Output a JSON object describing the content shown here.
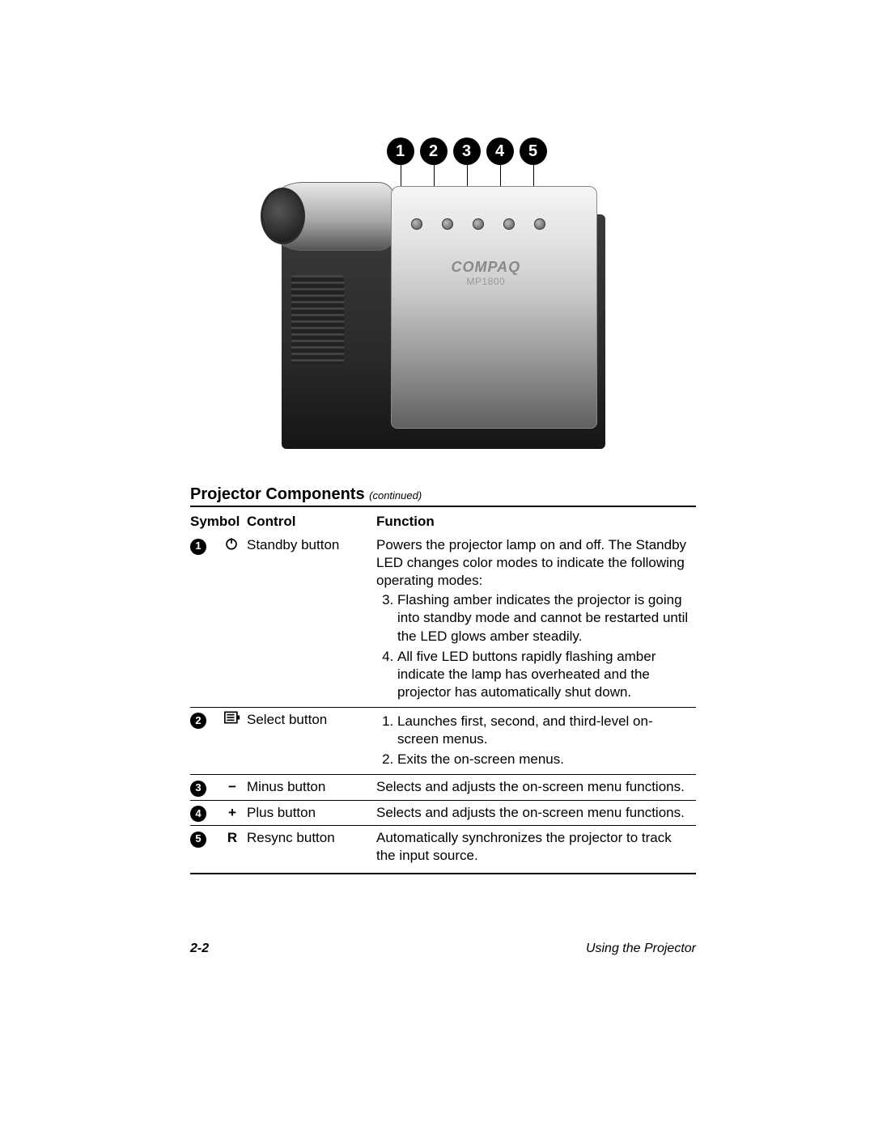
{
  "figure": {
    "callouts": [
      "1",
      "2",
      "3",
      "4",
      "5"
    ],
    "brand": "COMPAQ",
    "model": "MP1800"
  },
  "section": {
    "title": "Projector Components",
    "continued": "(continued)"
  },
  "headers": {
    "symbol": "Symbol",
    "control": "Control",
    "function": "Function"
  },
  "rows": [
    {
      "num": "1",
      "icon_svg": "standby",
      "control": "Standby button",
      "function_intro": "Powers the projector lamp on and off. The Standby LED changes color modes to indicate the following operating modes:",
      "list_start": 3,
      "list": [
        "Flashing amber indicates the projector is going into standby mode and cannot be restarted until the LED glows amber steadily.",
        "All five LED buttons rapidly flashing amber indicate the lamp has overheated and the projector has automatically shut down."
      ]
    },
    {
      "num": "2",
      "icon_svg": "select",
      "control": "Select button",
      "list_start": 1,
      "list": [
        "Launches first, second, and third-level on-screen menus.",
        "Exits the on-screen menus."
      ]
    },
    {
      "num": "3",
      "icon_text": "−",
      "control": "Minus button",
      "function_text": "Selects and adjusts the on-screen menu functions."
    },
    {
      "num": "4",
      "icon_text": "+",
      "control": "Plus button",
      "function_text": "Selects and adjusts the on-screen menu functions."
    },
    {
      "num": "5",
      "icon_text": "R",
      "control": "Resync button",
      "function_text": "Automatically synchronizes the projector to track the input source."
    }
  ],
  "footer": {
    "page": "2-2",
    "chapter": "Using the Projector"
  }
}
